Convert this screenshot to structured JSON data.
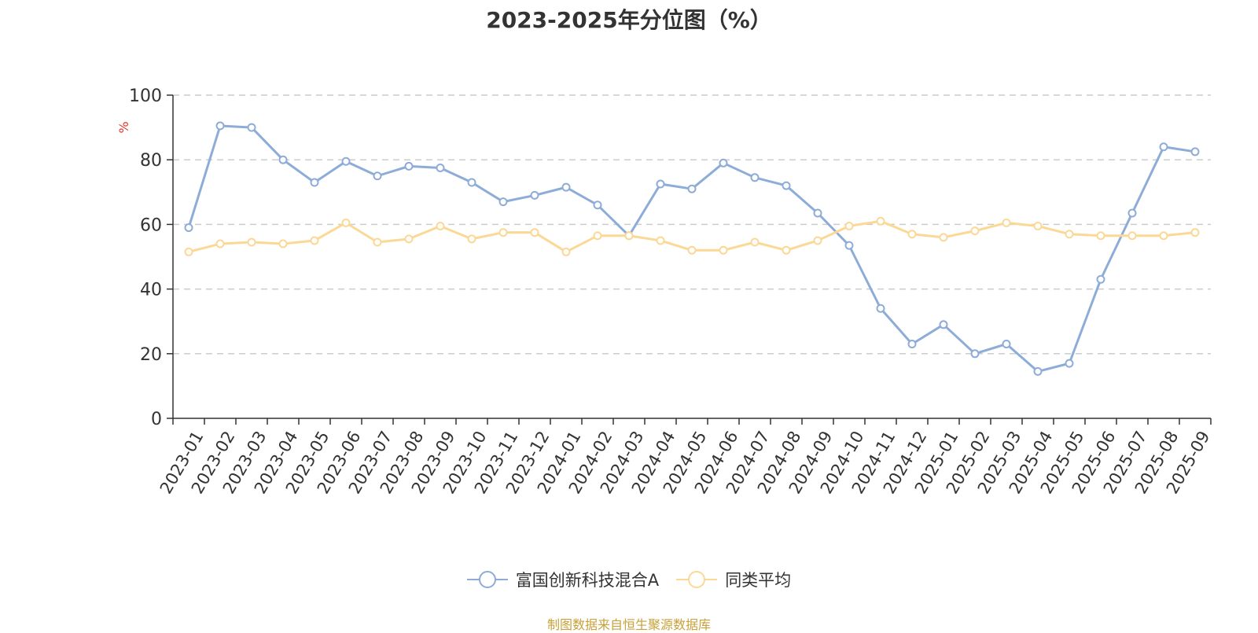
{
  "title": "2023-2025年分位图（%）",
  "source_note": "制图数据来自恒生聚源数据库",
  "colors": {
    "series_a": "#8eacd8",
    "series_b": "#fcd896",
    "axis": "#333333",
    "grid": "#cccccc",
    "ylabel": "#e8342c",
    "source": "#c8a13a"
  },
  "legend": [
    {
      "name": "富国创新科技混合A",
      "color": "#8eacd8"
    },
    {
      "name": "同类平均",
      "color": "#fcd896"
    }
  ],
  "chart_data": {
    "type": "line",
    "title": "2023-2025年分位图（%）",
    "xlabel": "",
    "ylabel": "%",
    "ylim": [
      0,
      100
    ],
    "yticks": [
      0,
      20,
      40,
      60,
      80,
      100
    ],
    "grid": true,
    "legend_position": "bottom",
    "categories": [
      "2023-01",
      "2023-02",
      "2023-03",
      "2023-04",
      "2023-05",
      "2023-06",
      "2023-07",
      "2023-08",
      "2023-09",
      "2023-10",
      "2023-11",
      "2023-12",
      "2024-01",
      "2024-02",
      "2024-03",
      "2024-04",
      "2024-05",
      "2024-06",
      "2024-07",
      "2024-08",
      "2024-09",
      "2024-10",
      "2024-11",
      "2024-12",
      "2025-01",
      "2025-02",
      "2025-03",
      "2025-04",
      "2025-05",
      "2025-06",
      "2025-07",
      "2025-08",
      "2025-09"
    ],
    "series": [
      {
        "name": "富国创新科技混合A",
        "color": "#8eacd8",
        "values": [
          59,
          90.5,
          90,
          80,
          73,
          79.5,
          75,
          78,
          77.5,
          73,
          67,
          69,
          71.5,
          66,
          56.5,
          72.5,
          71,
          79,
          74.5,
          72,
          63.5,
          53.5,
          34,
          23,
          29,
          20,
          23,
          14.5,
          17,
          43,
          63.5,
          84,
          82.5
        ]
      },
      {
        "name": "同类平均",
        "color": "#fcd896",
        "values": [
          51.5,
          54,
          54.5,
          54,
          55,
          60.5,
          54.5,
          55.5,
          59.5,
          55.5,
          57.5,
          57.5,
          51.5,
          56.5,
          56.5,
          55,
          52,
          52,
          54.5,
          52,
          55,
          59.5,
          61,
          57,
          56,
          58,
          60.5,
          59.5,
          57,
          56.5,
          56.5,
          56.5,
          57.5
        ]
      }
    ]
  }
}
